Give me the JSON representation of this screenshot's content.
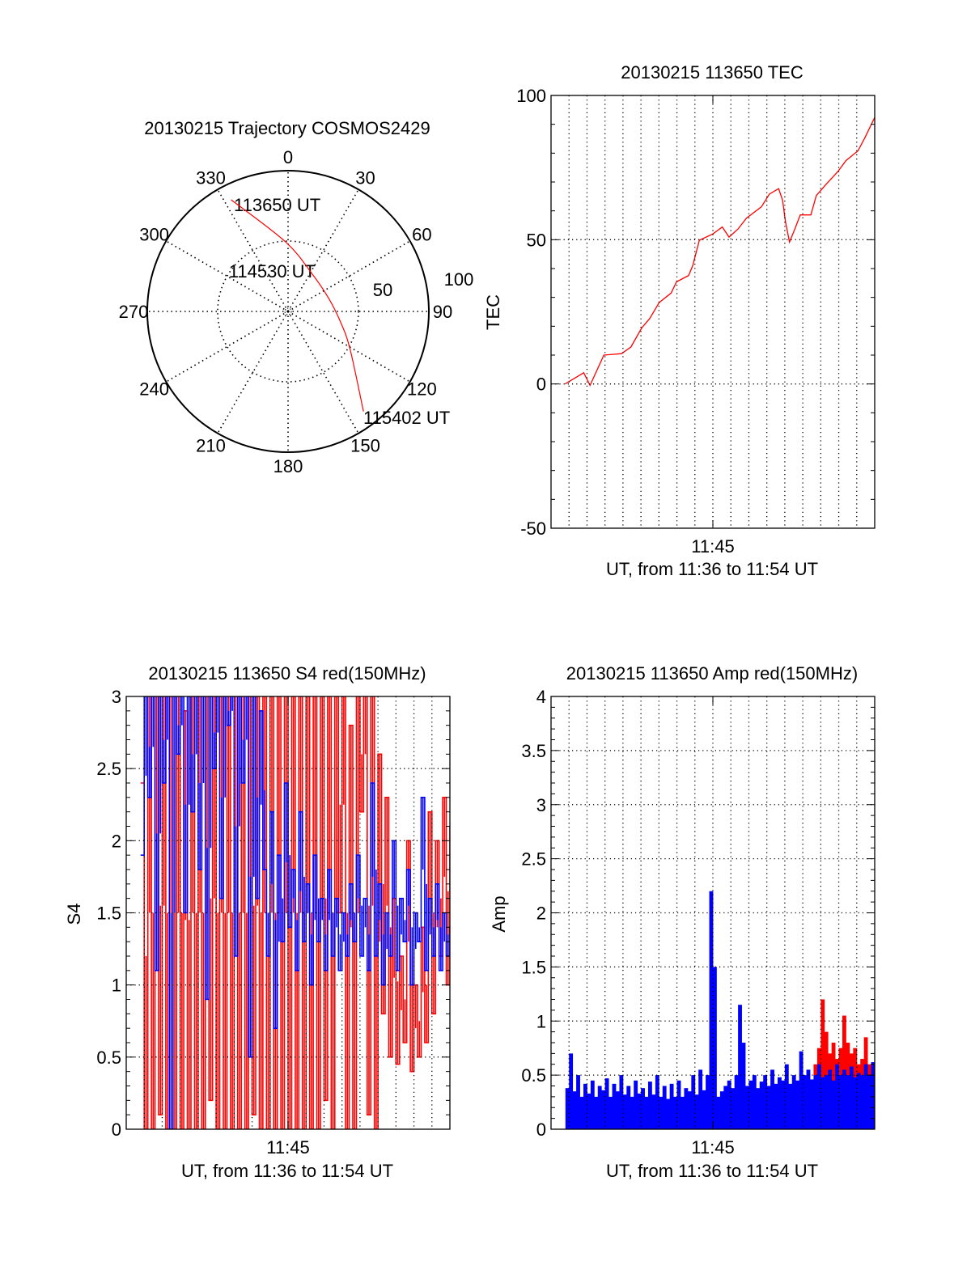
{
  "chart_data": [
    {
      "type": "polar",
      "title": "20130215 Trajectory COSMOS2429",
      "angle_labels": [
        "0",
        "30",
        "60",
        "90",
        "120",
        "150",
        "180",
        "210",
        "240",
        "270",
        "300",
        "330"
      ],
      "angles_deg": [
        0,
        30,
        60,
        90,
        120,
        150,
        180,
        210,
        240,
        270,
        300,
        330
      ],
      "radial_labels": [
        "50",
        "100"
      ],
      "radial_values": [
        50,
        100
      ],
      "rlim": [
        0,
        100
      ],
      "trajectory": {
        "color": "#ff0000",
        "azimuth_deg": [
          333,
          358,
          33,
          72,
          102,
          121.6,
          143
        ],
        "radius": [
          89,
          49.4,
          31.6,
          30.3,
          38.3,
          51.8,
          89
        ]
      },
      "annotations": [
        "113650 UT",
        "114530 UT",
        "115402 UT"
      ]
    },
    {
      "type": "line",
      "title": "20130215 113650 TEC",
      "ylabel": "TEC",
      "xlabel": "UT, from 11:36 to 11:54 UT",
      "xtick_labels": [
        "11:45"
      ],
      "xtick_values": [
        9
      ],
      "x_unit": "minutes after 11:36 UT",
      "xlim": [
        0,
        18
      ],
      "ylim": [
        -50,
        100
      ],
      "yticks": [
        -50,
        0,
        50,
        100
      ],
      "ytick_labels": [
        "-50",
        "0",
        "50",
        "100"
      ],
      "yminor": 10,
      "hgrid": [
        0,
        50
      ],
      "series": [
        {
          "name": "TEC",
          "color": "#ff0000",
          "style": "line",
          "x": [
            0.78,
            1.82,
            2.17,
            2.94,
            3.92,
            4.44,
            5.04,
            5.49,
            6.01,
            6.68,
            6.98,
            7.65,
            7.88,
            8.25,
            9.0,
            9.52,
            9.9,
            10.4,
            10.87,
            11.7,
            12.14,
            12.66,
            12.88,
            13.03,
            13.26,
            13.56,
            13.86,
            14.45,
            14.75,
            15.28,
            15.95,
            16.4,
            17.07,
            17.44,
            18.0
          ],
          "values": [
            0,
            3.9,
            -0.5,
            10,
            10.5,
            12.8,
            19.4,
            22.7,
            28.2,
            31.5,
            35.4,
            37.6,
            41,
            49.8,
            52,
            54.4,
            50.9,
            53.7,
            57.5,
            61.4,
            65.8,
            67.7,
            63.6,
            56.4,
            49.2,
            53.7,
            58.6,
            58.6,
            65.3,
            69.1,
            73.6,
            77.4,
            80.8,
            85.2,
            92.4
          ]
        }
      ]
    },
    {
      "type": "line",
      "title": "20130215 113650 S4 red(150MHz)",
      "ylabel": "S4",
      "xlabel": "UT, from 11:36 to 11:54 UT",
      "xtick_labels": [
        "11:45"
      ],
      "xtick_values": [
        9
      ],
      "x_unit": "minutes after 11:36 UT",
      "xlim": [
        0,
        18
      ],
      "ylim": [
        0,
        3
      ],
      "yticks": [
        0,
        0.5,
        1,
        1.5,
        2,
        2.5,
        3
      ],
      "ytick_labels": [
        "0",
        "0.5",
        "1",
        "1.5",
        "2",
        "2.5",
        "3"
      ],
      "yminor": 0.1,
      "hgrid": [
        0.5,
        1,
        1.5,
        2,
        2.5
      ],
      "series": [
        {
          "name": "S4 red",
          "color": "#ff0000",
          "style": "step",
          "x0": 0.8,
          "dx": 0.2,
          "values": [
            2.4,
            0,
            3,
            0,
            3,
            0.1,
            3,
            0,
            3,
            0,
            3,
            0,
            2.9,
            0,
            3,
            0,
            3,
            0,
            3,
            0.2,
            3,
            0,
            3,
            0,
            3,
            0,
            3,
            0,
            3,
            0,
            3,
            0.1,
            3,
            0,
            3,
            0,
            3,
            0,
            3,
            0,
            3,
            0,
            3,
            0,
            3,
            0,
            3,
            0,
            3,
            0,
            3,
            0.2,
            3,
            0,
            3,
            1.5,
            3,
            0,
            2.8,
            0,
            3,
            2.2,
            3,
            0.1,
            3,
            0,
            2.6,
            0.8,
            2.3,
            0.5,
            1.6,
            0.45,
            1.2,
            0.6,
            2.0,
            0.4,
            1.0,
            0.5,
            1.4,
            0.6,
            2.2,
            0.8,
            2.0,
            1.2,
            2.3,
            1.0,
            2.1
          ]
        },
        {
          "name": "S4 blue",
          "color": "#0000ff",
          "style": "step",
          "x0": 0.8,
          "dx": 0.2,
          "values": [
            1.9,
            3,
            2.3,
            3,
            1.1,
            3,
            2.4,
            3,
            0,
            3,
            2.6,
            3,
            1.5,
            3,
            2.2,
            3,
            1.8,
            3,
            0.9,
            3,
            2.5,
            3,
            1.6,
            3,
            2.8,
            3,
            1.2,
            3,
            2.4,
            3,
            0.5,
            3,
            1.6,
            2.9,
            1.8,
            1.2,
            2.2,
            0.7,
            1.9,
            1.3,
            2.4,
            1.4,
            1.8,
            1.1,
            2.2,
            1.3,
            1.7,
            1.0,
            1.9,
            1.3,
            1.6,
            1.1,
            1.8,
            1.2,
            1.6,
            1.1,
            1.5,
            1.2,
            1.7,
            1.3,
            1.9,
            1.2,
            1.6,
            1.1,
            2.4,
            1.2,
            1.7,
            1.0,
            1.5,
            1.2,
            2.0,
            1.1,
            1.6,
            1.3,
            1.8,
            1.0,
            1.5,
            1.3,
            2.3,
            1.1,
            1.6,
            1.2,
            1.7,
            1.1,
            1.5,
            1.2,
            1.4
          ]
        }
      ]
    },
    {
      "type": "bar",
      "title": "20130215 113650 Amp red(150MHz)",
      "ylabel": "Amp",
      "xlabel": "UT, from 11:36 to 11:54 UT",
      "xtick_labels": [
        "11:45"
      ],
      "xtick_values": [
        9
      ],
      "x_unit": "minutes after 11:36 UT",
      "xlim": [
        0,
        18
      ],
      "ylim": [
        0,
        4
      ],
      "yticks": [
        0,
        0.5,
        1,
        1.5,
        2,
        2.5,
        3,
        3.5,
        4
      ],
      "ytick_labels": [
        "0",
        "0.5",
        "1",
        "1.5",
        "2",
        "2.5",
        "3",
        "3.5",
        "4"
      ],
      "yminor": 0.1,
      "hgrid": [
        0.5,
        1,
        1.5,
        2,
        2.5,
        3,
        3.5
      ],
      "series": [
        {
          "name": "Amp red",
          "color": "#ff0000",
          "style": "bar",
          "x0": 14.6,
          "dx": 0.2,
          "values": [
            0.6,
            0.75,
            1.2,
            0.9,
            0.7,
            0.8,
            0.65,
            0.75,
            1.05,
            0.8,
            0.7,
            0.75,
            0.6,
            0.65,
            0.85,
            0.6
          ]
        },
        {
          "name": "Amp blue",
          "color": "#0000ff",
          "style": "bar",
          "x0": 0.8,
          "dx": 0.2,
          "values": [
            0.38,
            0.7,
            0.35,
            0.5,
            0.3,
            0.42,
            0.33,
            0.45,
            0.3,
            0.4,
            0.36,
            0.47,
            0.3,
            0.42,
            0.35,
            0.5,
            0.32,
            0.4,
            0.3,
            0.45,
            0.33,
            0.38,
            0.3,
            0.44,
            0.32,
            0.5,
            0.3,
            0.4,
            0.28,
            0.42,
            0.3,
            0.45,
            0.3,
            0.38,
            0.35,
            0.5,
            0.32,
            0.55,
            0.36,
            0.5,
            2.2,
            1.5,
            0.3,
            0.35,
            0.4,
            0.45,
            0.38,
            0.5,
            1.15,
            0.8,
            0.4,
            0.45,
            0.5,
            0.38,
            0.44,
            0.5,
            0.4,
            0.55,
            0.42,
            0.48,
            0.45,
            0.6,
            0.42,
            0.5,
            0.45,
            0.72,
            0.5,
            0.55,
            0.46,
            0.5,
            0.6,
            0.48,
            0.5,
            0.55,
            0.45,
            0.6,
            0.5,
            0.55,
            0.5,
            0.58,
            0.48,
            0.52,
            0.5,
            0.6,
            0.5,
            0.62,
            0.5
          ]
        }
      ]
    }
  ]
}
